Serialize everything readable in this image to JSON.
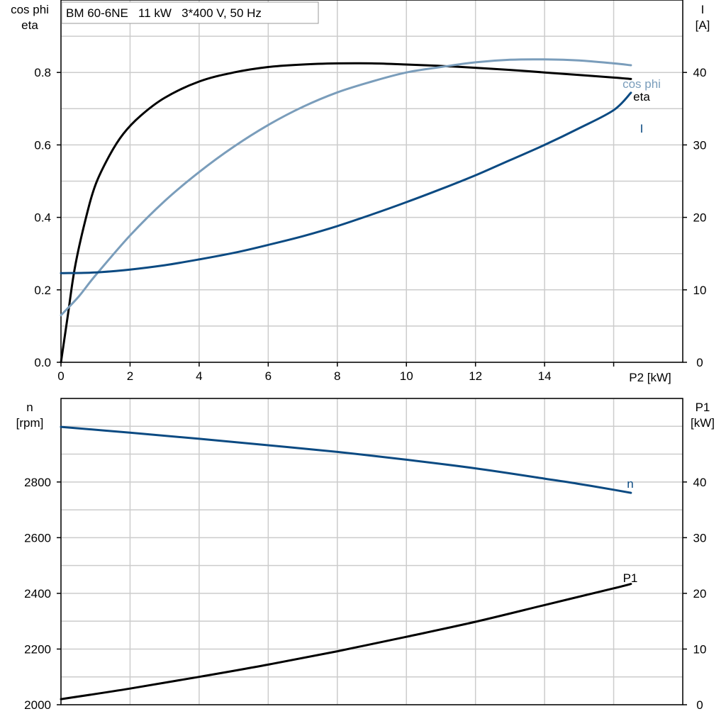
{
  "title": "BM 60-6NE   11 kW   3*400 V, 50 Hz",
  "colors": {
    "black": "#000000",
    "dark_blue": "#0b4a82",
    "light_blue": "#7a9dbb",
    "grid": "#cccccc",
    "frame": "#000000"
  },
  "chart_data": [
    {
      "type": "line",
      "panel": "top",
      "xlabel": "P2 [kW]",
      "xlim": [
        0,
        18
      ],
      "x_ticks": [
        0,
        2,
        4,
        6,
        8,
        10,
        12,
        14
      ],
      "left_ylabel_lines": [
        "cos phi",
        "eta"
      ],
      "left_ylim": [
        0,
        1.0
      ],
      "left_ticks": [
        0.0,
        0.2,
        0.4,
        0.6,
        0.8
      ],
      "left_tick_labels": [
        "0.0",
        "0.2",
        "0.4",
        "0.6",
        "0.8"
      ],
      "right_ylabel_lines": [
        "I",
        "[A]"
      ],
      "right_ylim": [
        0,
        50
      ],
      "right_ticks": [
        0,
        10,
        20,
        30,
        40
      ],
      "right_tick_labels": [
        "0",
        "10",
        "20",
        "30",
        "40"
      ],
      "grid": true,
      "series": [
        {
          "name": "eta",
          "axis": "left",
          "color": "#000000",
          "x": [
            0,
            0.2,
            0.4,
            0.7,
            1.0,
            1.4,
            1.8,
            2.3,
            3.0,
            4.0,
            5.0,
            6.0,
            7.0,
            8.0,
            9.0,
            10.0,
            11.0,
            12.0,
            13.0,
            14.0,
            15.0,
            16.0,
            16.5
          ],
          "y": [
            0.0,
            0.13,
            0.26,
            0.39,
            0.49,
            0.57,
            0.63,
            0.68,
            0.73,
            0.775,
            0.8,
            0.815,
            0.822,
            0.825,
            0.825,
            0.822,
            0.818,
            0.813,
            0.807,
            0.8,
            0.793,
            0.786,
            0.782
          ]
        },
        {
          "name": "cos phi",
          "axis": "left",
          "color": "#7a9dbb",
          "x": [
            0,
            0.5,
            1.0,
            2.0,
            3.0,
            4.0,
            5.0,
            6.0,
            7.0,
            8.0,
            9.0,
            10.0,
            11.0,
            12.0,
            13.0,
            14.0,
            15.0,
            16.0,
            16.5
          ],
          "y": [
            0.13,
            0.18,
            0.24,
            0.35,
            0.445,
            0.525,
            0.595,
            0.655,
            0.705,
            0.745,
            0.775,
            0.8,
            0.815,
            0.828,
            0.835,
            0.836,
            0.833,
            0.825,
            0.82
          ]
        },
        {
          "name": "I",
          "axis": "right",
          "color": "#0b4a82",
          "x": [
            0,
            1,
            2,
            3,
            4,
            5,
            6,
            7,
            8,
            9,
            10,
            11,
            12,
            13,
            14,
            15,
            16,
            16.5
          ],
          "y": [
            12.3,
            12.4,
            12.8,
            13.4,
            14.2,
            15.1,
            16.2,
            17.4,
            18.8,
            20.4,
            22.1,
            23.9,
            25.8,
            27.9,
            30.0,
            32.3,
            34.8,
            37.2
          ]
        }
      ],
      "labels": [
        {
          "text": "cos phi",
          "color": "#7a9dbb"
        },
        {
          "text": "eta",
          "color": "#000000"
        },
        {
          "text": "I",
          "color": "#0b4a82"
        }
      ]
    },
    {
      "type": "line",
      "panel": "bottom",
      "xlim": [
        0,
        18
      ],
      "left_ylabel_lines": [
        "n",
        "[rpm]"
      ],
      "left_ylim": [
        2000,
        3100
      ],
      "left_ticks": [
        2000,
        2200,
        2400,
        2600,
        2800
      ],
      "left_tick_labels": [
        "2000",
        "2200",
        "2400",
        "2600",
        "2800"
      ],
      "right_ylabel_lines": [
        "P1",
        "[kW]"
      ],
      "right_ylim": [
        0,
        55
      ],
      "right_ticks": [
        0,
        10,
        20,
        30,
        40
      ],
      "right_tick_labels": [
        "0",
        "10",
        "20",
        "30",
        "40"
      ],
      "grid": true,
      "series": [
        {
          "name": "n",
          "axis": "left",
          "color": "#0b4a82",
          "x": [
            0,
            2,
            4,
            6,
            8,
            10,
            12,
            14,
            15,
            16,
            16.5
          ],
          "y": [
            2998,
            2977,
            2955,
            2932,
            2908,
            2880,
            2849,
            2812,
            2793,
            2772,
            2761
          ]
        },
        {
          "name": "P1",
          "axis": "right",
          "color": "#000000",
          "x": [
            0,
            2,
            4,
            6,
            8,
            10,
            12,
            14,
            16,
            16.5
          ],
          "y": [
            1.0,
            2.9,
            5.0,
            7.2,
            9.6,
            12.2,
            14.9,
            17.9,
            20.9,
            21.7
          ]
        }
      ],
      "labels": [
        {
          "text": "n",
          "color": "#0b4a82"
        },
        {
          "text": "P1",
          "color": "#000000"
        }
      ]
    }
  ]
}
